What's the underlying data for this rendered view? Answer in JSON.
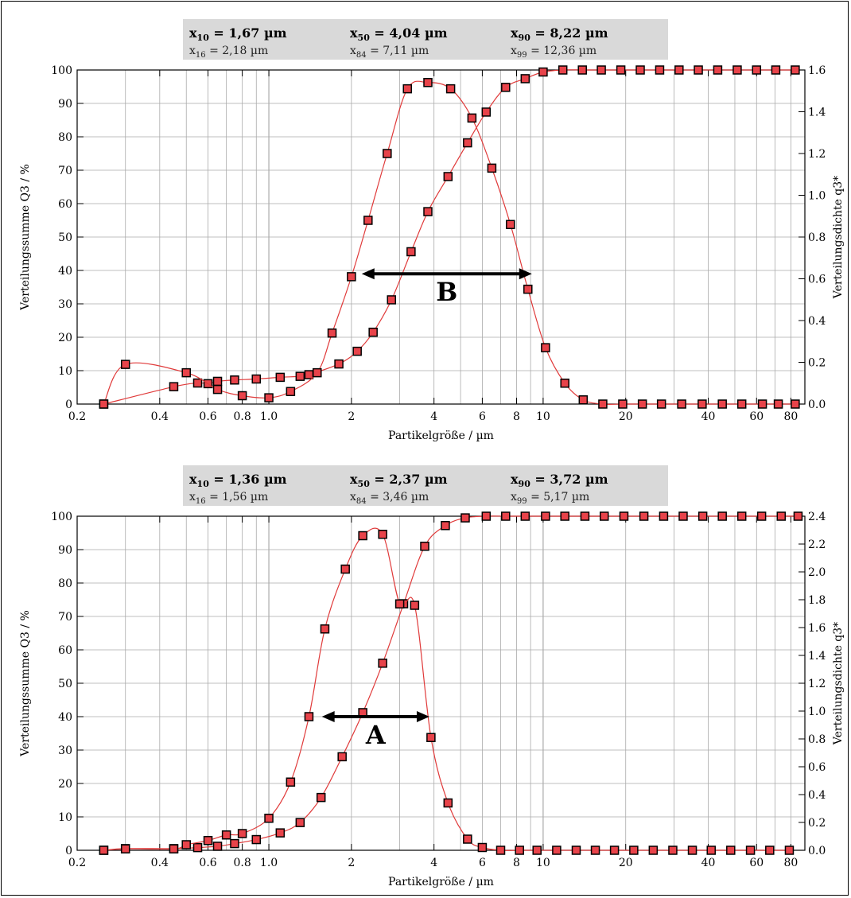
{
  "colors": {
    "curve": "#e03a3a",
    "marker_fill": "#e8434a",
    "marker_stroke": "#000000",
    "stats_bg": "#d9d9d9",
    "grid": "#aaaaaa",
    "arrow": "#000000"
  },
  "chart_data": [
    {
      "type": "scatter",
      "title": "",
      "stats": {
        "row1": [
          {
            "sub": "10",
            "value": "= 1,67 µm"
          },
          {
            "sub": "50",
            "value": "= 4,04 µm"
          },
          {
            "sub": "90",
            "value": "= 8,22 µm"
          }
        ],
        "row2": [
          {
            "sub": "16",
            "value": "= 2,18 µm"
          },
          {
            "sub": "84",
            "value": "= 7,11 µm"
          },
          {
            "sub": "99",
            "value": "= 12,36 µm"
          }
        ]
      },
      "xlabel": "Partikelgröße / µm",
      "ylabel": "Verteilungssumme Q3 / %",
      "y2label": "Verteilungsdichte q3*",
      "x_scale": "log",
      "xlim": [
        0.2,
        90
      ],
      "ylim": [
        0,
        100
      ],
      "y2lim": [
        0,
        1.6
      ],
      "x_ticks": [
        {
          "v": 0.2,
          "label": "0.2"
        },
        {
          "v": 0.4,
          "label": "0.4"
        },
        {
          "v": 0.6,
          "label": "0.6"
        },
        {
          "v": 0.8,
          "label": "0.8"
        },
        {
          "v": 1.0,
          "label": "1.0"
        },
        {
          "v": 2,
          "label": "2"
        },
        {
          "v": 4,
          "label": "4"
        },
        {
          "v": 6,
          "label": "6"
        },
        {
          "v": 8,
          "label": "8"
        },
        {
          "v": 10,
          "label": "10"
        },
        {
          "v": 20,
          "label": "20"
        },
        {
          "v": 40,
          "label": "40"
        },
        {
          "v": 60,
          "label": "60"
        },
        {
          "v": 80,
          "label": "80"
        }
      ],
      "y_ticks": [
        "0",
        "10",
        "20",
        "30",
        "40",
        "50",
        "60",
        "70",
        "80",
        "90",
        "100"
      ],
      "y2_ticks": [
        "0.0",
        "0.2",
        "0.4",
        "0.6",
        "0.8",
        "1.0",
        "1.2",
        "1.4",
        "1.6"
      ],
      "grid": true,
      "series": [
        {
          "axis": "left",
          "x": [
            0.25,
            0.45,
            0.55,
            0.6,
            0.65,
            0.75,
            0.9,
            1.1,
            1.3,
            1.4,
            1.8,
            2.1,
            2.4,
            2.8,
            3.3,
            3.8,
            4.5,
            5.3,
            6.2,
            7.3,
            8.6,
            10,
            11.8,
            13.9,
            16.3,
            19.2,
            22.6,
            26.6,
            31.3,
            36.8,
            43.3,
            51,
            60,
            70.5,
            83
          ],
          "y": [
            0,
            5.2,
            6.3,
            6.1,
            6.8,
            7.2,
            7.5,
            8,
            8.3,
            8.8,
            12,
            15.8,
            21.5,
            31.2,
            45.6,
            57.6,
            68.1,
            78.2,
            87.4,
            94.8,
            97.4,
            99.4,
            100,
            100,
            100,
            100,
            100,
            100,
            100,
            100,
            100,
            100,
            100,
            100,
            100
          ]
        },
        {
          "axis": "right",
          "x": [
            0.25,
            0.3,
            0.5,
            0.65,
            0.8,
            1.0,
            1.2,
            1.5,
            1.7,
            2.0,
            2.3,
            2.7,
            3.2,
            3.8,
            4.6,
            5.5,
            6.5,
            7.6,
            8.8,
            10.2,
            12,
            14,
            16.5,
            19.5,
            23,
            27,
            32,
            38,
            45,
            53,
            63,
            72,
            83
          ],
          "y": [
            0,
            0.19,
            0.15,
            0.07,
            0.04,
            0.03,
            0.06,
            0.15,
            0.34,
            0.61,
            0.88,
            1.2,
            1.51,
            1.54,
            1.51,
            1.37,
            1.13,
            0.86,
            0.55,
            0.27,
            0.1,
            0.02,
            0,
            0,
            0,
            0,
            0,
            0,
            0,
            0,
            0,
            0,
            0
          ]
        }
      ],
      "annotation": {
        "label": "B",
        "from_x": 2.18,
        "to_x": 9.1,
        "at_y": 39
      }
    },
    {
      "type": "scatter",
      "title": "",
      "stats": {
        "row1": [
          {
            "sub": "10",
            "value": "= 1,36 µm"
          },
          {
            "sub": "50",
            "value": "= 2,37 µm"
          },
          {
            "sub": "90",
            "value": "= 3,72 µm"
          }
        ],
        "row2": [
          {
            "sub": "16",
            "value": "= 1,56 µm"
          },
          {
            "sub": "84",
            "value": "= 3,46 µm"
          },
          {
            "sub": "99",
            "value": "= 5,17 µm"
          }
        ]
      },
      "xlabel": "Partikelgröße / µm",
      "ylabel": "Verteilungssumme Q3 / %",
      "y2label": "Verteilungsdichte q3*",
      "x_scale": "log",
      "xlim": [
        0.2,
        90
      ],
      "ylim": [
        0,
        100
      ],
      "y2lim": [
        0,
        2.4
      ],
      "x_ticks": [
        {
          "v": 0.2,
          "label": "0.2"
        },
        {
          "v": 0.4,
          "label": "0.4"
        },
        {
          "v": 0.6,
          "label": "0.6"
        },
        {
          "v": 0.8,
          "label": "0.8"
        },
        {
          "v": 1.0,
          "label": "1.0"
        },
        {
          "v": 2,
          "label": "2"
        },
        {
          "v": 4,
          "label": "4"
        },
        {
          "v": 6,
          "label": "6"
        },
        {
          "v": 8,
          "label": "8"
        },
        {
          "v": 10,
          "label": "10"
        },
        {
          "v": 20,
          "label": "20"
        },
        {
          "v": 40,
          "label": "40"
        },
        {
          "v": 60,
          "label": "60"
        },
        {
          "v": 80,
          "label": "80"
        }
      ],
      "y_ticks": [
        "0",
        "10",
        "20",
        "30",
        "40",
        "50",
        "60",
        "70",
        "80",
        "90",
        "100"
      ],
      "y2_ticks": [
        "0.0",
        "0.2",
        "0.4",
        "0.6",
        "0.8",
        "1.0",
        "1.2",
        "1.4",
        "1.6",
        "1.8",
        "2.0",
        "2.2",
        "2.4"
      ],
      "grid": true,
      "series": [
        {
          "axis": "left",
          "x": [
            0.25,
            0.3,
            0.45,
            0.55,
            0.65,
            0.75,
            0.9,
            1.1,
            1.3,
            1.55,
            1.85,
            2.2,
            2.6,
            3.1,
            3.7,
            4.4,
            5.2,
            6.2,
            7.3,
            8.6,
            10.2,
            12,
            14.2,
            16.7,
            19.7,
            23.3,
            27.5,
            32.4,
            38.2,
            45,
            53,
            62.6,
            73.8,
            85
          ],
          "y": [
            0,
            0.5,
            0.5,
            0.8,
            1.2,
            2,
            3.2,
            5.2,
            8.3,
            15.8,
            28,
            41.2,
            56,
            73.8,
            91,
            97.2,
            99.5,
            100,
            100,
            100,
            100,
            100,
            100,
            100,
            100,
            100,
            100,
            100,
            100,
            100,
            100,
            100,
            100,
            100
          ]
        },
        {
          "axis": "right",
          "x": [
            0.25,
            0.3,
            0.45,
            0.5,
            0.6,
            0.7,
            0.8,
            1.0,
            1.2,
            1.4,
            1.6,
            1.9,
            2.2,
            2.6,
            3.0,
            3.4,
            3.9,
            4.5,
            5.3,
            6.0,
            7.0,
            8.2,
            9.5,
            11.2,
            13.2,
            15.5,
            18.2,
            21.4,
            25.2,
            29.7,
            35,
            41,
            48.3,
            57,
            67,
            79
          ],
          "y": [
            0,
            0.01,
            0.01,
            0.04,
            0.07,
            0.11,
            0.12,
            0.23,
            0.49,
            0.96,
            1.59,
            2.02,
            2.26,
            2.27,
            1.77,
            1.76,
            0.81,
            0.34,
            0.08,
            0.02,
            0,
            0,
            0,
            0,
            0,
            0,
            0,
            0,
            0,
            0,
            0,
            0,
            0,
            0,
            0,
            0
          ]
        }
      ],
      "annotation": {
        "label": "A",
        "from_x": 1.56,
        "to_x": 3.85,
        "at_y": 40
      }
    }
  ]
}
